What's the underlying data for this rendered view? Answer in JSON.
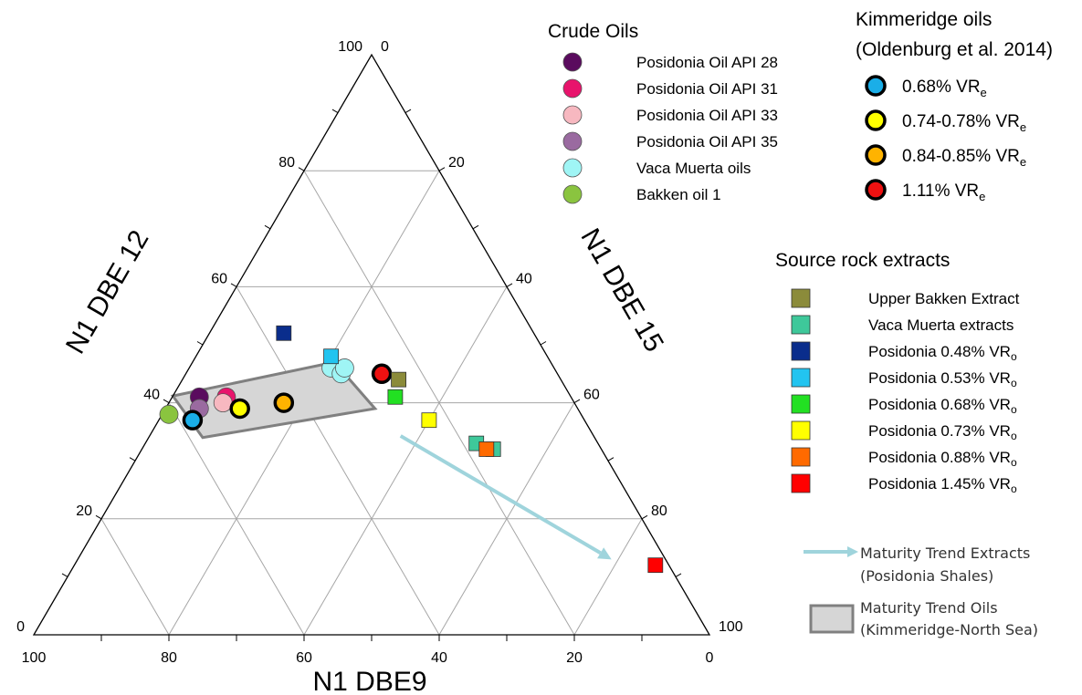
{
  "chart_data": {
    "type": "ternary-scatter",
    "axes": {
      "bottom": {
        "label": "N1 DBE9",
        "ticks": [
          "100",
          "80",
          "60",
          "40",
          "20",
          "0"
        ]
      },
      "left": {
        "label": "N1 DBE 12",
        "ticks": [
          "0",
          "20",
          "40",
          "60",
          "80",
          "100"
        ]
      },
      "right": {
        "label": "N1 DBE 15",
        "ticks": [
          "0",
          "20",
          "40",
          "60",
          "80",
          "100"
        ]
      }
    },
    "grid": true,
    "legend_crude": {
      "title": "Crude Oils",
      "entries": [
        {
          "label": "Posidonia Oil API 28",
          "color": "#5a0b5e"
        },
        {
          "label": "Posidonia Oil API 31",
          "color": "#e8146c"
        },
        {
          "label": "Posidonia Oil API 33",
          "color": "#f7b8c0"
        },
        {
          "label": "Posidonia Oil API 35",
          "color": "#9a6aa0"
        },
        {
          "label": "Vaca Muerta oils",
          "color": "#9ff5f5"
        },
        {
          "label": "Bakken oil 1",
          "color": "#8ac43f"
        }
      ]
    },
    "legend_kimmeridge": {
      "title_line1": "Kimmeridge oils",
      "title_line2": "(Oldenburg et al. 2014)",
      "entries": [
        {
          "label": "0.68% VR",
          "sub": "e",
          "color": "#1aaee8"
        },
        {
          "label": "0.74-0.78% VR",
          "sub": "e",
          "color": "#ffff00"
        },
        {
          "label": "0.84-0.85% VR",
          "sub": "e",
          "color": "#ffb300"
        },
        {
          "label": "1.11% VR",
          "sub": "e",
          "color": "#ee1111"
        }
      ]
    },
    "legend_source": {
      "title": "Source rock extracts",
      "entries": [
        {
          "label": "Upper Bakken Extract",
          "sub": "",
          "color": "#8b8b3a"
        },
        {
          "label": "Vaca Muerta extracts",
          "sub": "",
          "color": "#3ec89a"
        },
        {
          "label": "Posidonia 0.48% VR",
          "sub": "o",
          "color": "#0a2d8c"
        },
        {
          "label": "Posidonia 0.53% VR",
          "sub": "o",
          "color": "#22c4f0"
        },
        {
          "label": "Posidonia 0.68% VR",
          "sub": "o",
          "color": "#22e022"
        },
        {
          "label": "Posidonia 0.73% VR",
          "sub": "o",
          "color": "#ffff00"
        },
        {
          "label": "Posidonia 0.88% VR",
          "sub": "o",
          "color": "#ff6a00"
        },
        {
          "label": "Posidonia 1.45% VR",
          "sub": "o",
          "color": "#ff0000"
        }
      ]
    },
    "trend_notes": {
      "extracts_line1": "Maturity Trend Extracts",
      "extracts_line2": "(Posidonia Shales)",
      "oils_line1": "Maturity Trend Oils",
      "oils_line2": "(Kimmeridge-North Sea)"
    },
    "extract_trend_arrow": {
      "color": "#9fd4dc",
      "from": {
        "dbe9": 40,
        "dbe12": 48,
        "dbe15": 52
      },
      "to": {
        "dbe9": 8,
        "dbe12": 13,
        "dbe15": 79
      }
    },
    "oil_trend_band": {
      "color": "#d6d6d6",
      "corners": [
        {
          "dbe9": 60,
          "dbe12": 42,
          "dbe15": 0
        },
        {
          "dbe9": 32,
          "dbe12": 47,
          "dbe15": 21
        },
        {
          "dbe9": 30,
          "dbe12": 39,
          "dbe15": 31
        },
        {
          "dbe9": 58,
          "dbe12": 34,
          "dbe15": 8
        }
      ]
    },
    "points": [
      {
        "series": "Posidonia Oil API 28",
        "marker": "circle",
        "color": "#5a0b5e",
        "dbe9": 55,
        "dbe12": 41,
        "dbe15": 4
      },
      {
        "series": "Posidonia Oil API 31",
        "marker": "circle",
        "color": "#e8146c",
        "dbe9": 51,
        "dbe12": 41,
        "dbe15": 8
      },
      {
        "series": "Posidonia Oil API 33",
        "marker": "circle",
        "color": "#f7b8c0",
        "dbe9": 52,
        "dbe12": 40,
        "dbe15": 8
      },
      {
        "series": "Posidonia Oil API 35",
        "marker": "circle",
        "color": "#9a6aa0",
        "dbe9": 56,
        "dbe12": 39,
        "dbe15": 5
      },
      {
        "series": "Vaca Muerta oils",
        "marker": "circle",
        "color": "#9ff5f5",
        "dbe9": 33,
        "dbe12": 46,
        "dbe15": 21
      },
      {
        "series": "Vaca Muerta oils",
        "marker": "circle",
        "color": "#9ff5f5",
        "dbe9": 32,
        "dbe12": 45,
        "dbe15": 23
      },
      {
        "series": "Vaca Muerta oils",
        "marker": "circle",
        "color": "#9ff5f5",
        "dbe9": 31,
        "dbe12": 46,
        "dbe15": 23
      },
      {
        "series": "Bakken oil 1",
        "marker": "circle",
        "color": "#8ac43f",
        "dbe9": 61,
        "dbe12": 38,
        "dbe15": 1
      },
      {
        "series": "Kimmeridge 0.68% VRe",
        "marker": "ringed-circle",
        "color": "#1aaee8",
        "dbe9": 58,
        "dbe12": 37,
        "dbe15": 5
      },
      {
        "series": "Kimmeridge 0.74-0.78% VRe",
        "marker": "ringed-circle",
        "color": "#ffff00",
        "dbe9": 50,
        "dbe12": 39,
        "dbe15": 11
      },
      {
        "series": "Kimmeridge 0.84-0.85% VRe",
        "marker": "ringed-circle",
        "color": "#ffb300",
        "dbe9": 43,
        "dbe12": 40,
        "dbe15": 17
      },
      {
        "series": "Kimmeridge 1.11% VRe",
        "marker": "ringed-circle",
        "color": "#ee1111",
        "dbe9": 26,
        "dbe12": 45,
        "dbe15": 29
      },
      {
        "series": "Upper Bakken Extract",
        "marker": "square",
        "color": "#8b8b3a",
        "dbe9": 24,
        "dbe12": 44,
        "dbe15": 32
      },
      {
        "series": "Vaca Muerta extracts",
        "marker": "square",
        "color": "#3ec89a",
        "dbe9": 16,
        "dbe12": 32,
        "dbe15": 52
      },
      {
        "series": "Vaca Muerta extracts",
        "marker": "square",
        "color": "#3ec89a",
        "dbe9": 18,
        "dbe12": 33,
        "dbe15": 49
      },
      {
        "series": "Posidonia 0.48% VRo",
        "marker": "square",
        "color": "#0a2d8c",
        "dbe9": 37,
        "dbe12": 52,
        "dbe15": 11
      },
      {
        "series": "Posidonia 0.53% VRo",
        "marker": "square",
        "color": "#22c4f0",
        "dbe9": 32,
        "dbe12": 48,
        "dbe15": 20
      },
      {
        "series": "Posidonia 0.68% VRo",
        "marker": "square",
        "color": "#22e022",
        "dbe9": 26,
        "dbe12": 41,
        "dbe15": 33
      },
      {
        "series": "Posidonia 0.73% VRo",
        "marker": "square",
        "color": "#ffff00",
        "dbe9": 23,
        "dbe12": 37,
        "dbe15": 40
      },
      {
        "series": "Posidonia 0.88% VRo",
        "marker": "square",
        "color": "#ff6a00",
        "dbe9": 17,
        "dbe12": 32,
        "dbe15": 51
      },
      {
        "series": "Posidonia 1.45% VRo",
        "marker": "square",
        "color": "#ff0000",
        "dbe9": 2,
        "dbe12": 12,
        "dbe15": 86
      }
    ]
  }
}
